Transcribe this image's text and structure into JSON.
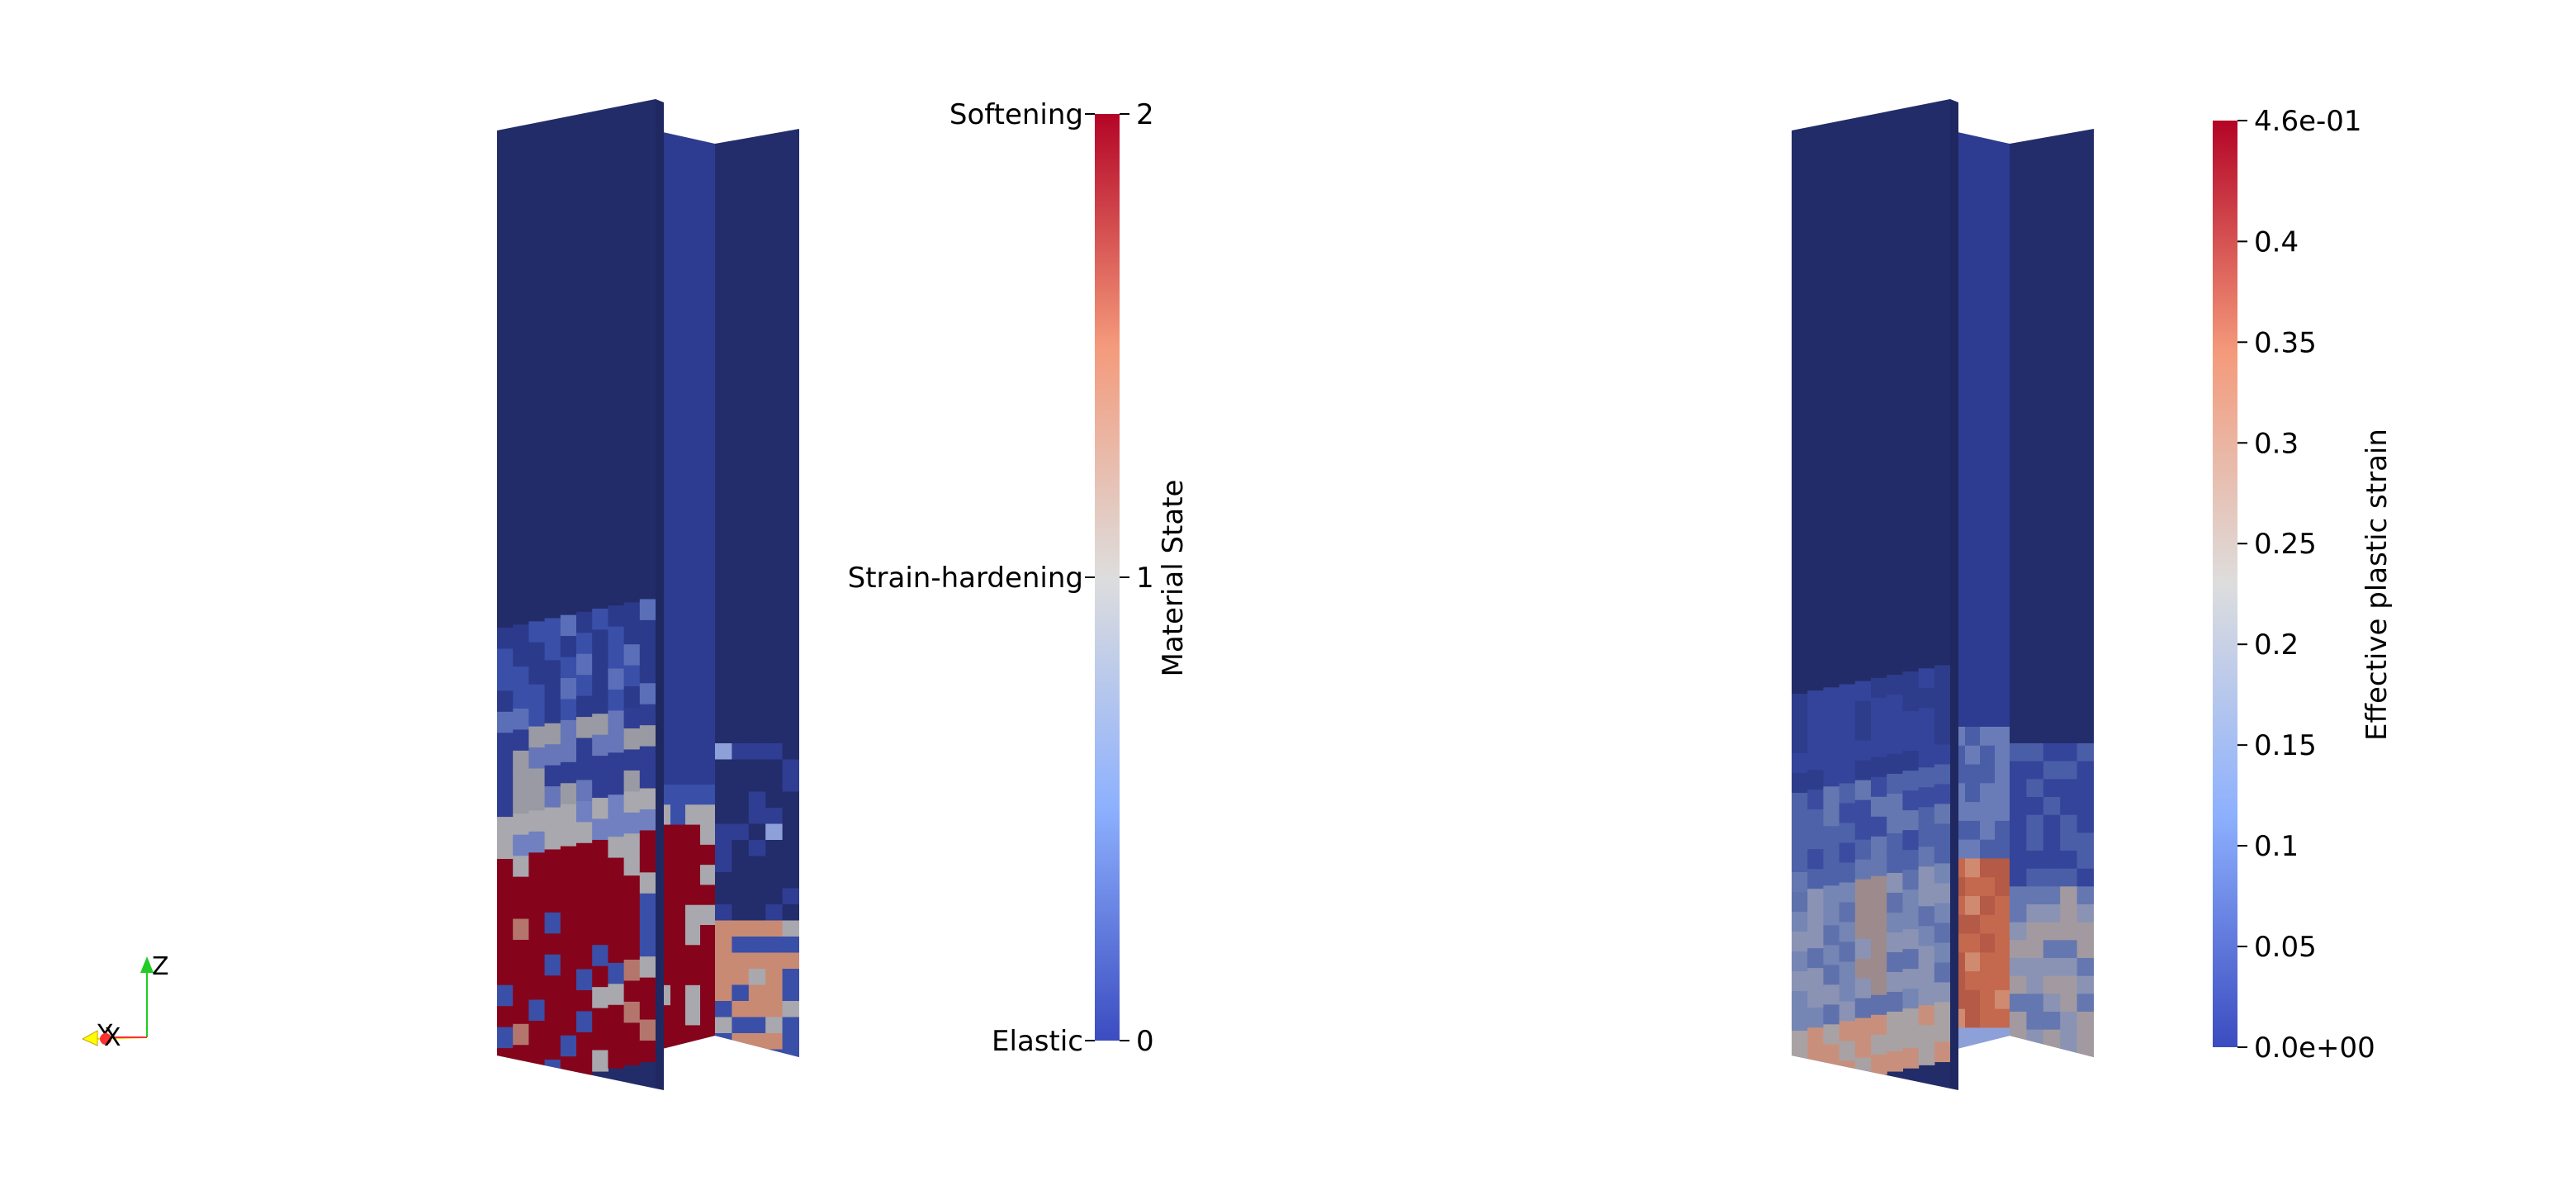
{
  "colors": {
    "background": "#ffffff",
    "elastic": "#3b4cc0",
    "neutral": "#dddddd",
    "softening": "#b40426",
    "mesh_blue": "#232d6b",
    "mesh_blue_mid": "#2b3a8a",
    "mesh_red": "#85041b",
    "axis_x": "#ff3030",
    "axis_y": "#ffff00",
    "axis_z": "#22cc22"
  },
  "axes_triad": {
    "z_label": "Z",
    "y_label": "Y",
    "x_label": "X"
  },
  "left_view": {
    "name": "material-state-model",
    "colorbar": {
      "title": "Material State",
      "range": [
        0,
        2
      ],
      "ticks": [
        {
          "value": 2,
          "label": "2",
          "category": "Softening"
        },
        {
          "value": 1,
          "label": "1",
          "category": "Strain-hardening"
        },
        {
          "value": 0,
          "label": "0",
          "category": "Elastic"
        }
      ]
    }
  },
  "right_view": {
    "name": "plastic-strain-model",
    "colorbar": {
      "title": "Effective plastic strain",
      "range": [
        0,
        0.46
      ],
      "ticks": [
        {
          "value": 0.46,
          "label": "4.6e-01"
        },
        {
          "value": 0.4,
          "label": "0.4"
        },
        {
          "value": 0.35,
          "label": "0.35"
        },
        {
          "value": 0.3,
          "label": "0.3"
        },
        {
          "value": 0.25,
          "label": "0.25"
        },
        {
          "value": 0.2,
          "label": "0.2"
        },
        {
          "value": 0.15,
          "label": "0.15"
        },
        {
          "value": 0.1,
          "label": "0.1"
        },
        {
          "value": 0.05,
          "label": "0.05"
        },
        {
          "value": 0,
          "label": "0.0e+00"
        }
      ]
    }
  }
}
